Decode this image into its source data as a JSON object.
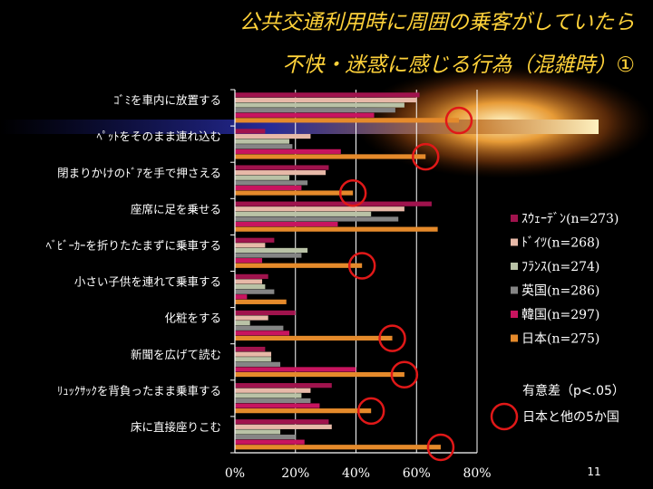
{
  "chart_data": {
    "type": "bar",
    "orientation": "horizontal",
    "title_lines": [
      "公共交通利用時に周囲の乗客がしていたら",
      "不快・迷惑に感じる行為（混雑時）①"
    ],
    "categories": [
      "ｺﾞﾐを車内に放置する",
      "ﾍﾟｯﾄをそのまま連れ込む",
      "閉まりかけのﾄﾞｱを手で押さえる",
      "座席に足を乗せる",
      "ﾍﾞﾋﾞｰｶｰを折りたたまずに乗車する",
      "小さい子供を連れて乗車する",
      "化粧をする",
      "新聞を広げて読む",
      "ﾘｭｯｸｻｯｸを背負ったまま乗車する",
      "床に直接座りこむ"
    ],
    "series": [
      {
        "name": "ｽｳｪｰﾃﾞﾝ(n=273)",
        "color": "#a0134d",
        "values": [
          61,
          10,
          31,
          65,
          13,
          11,
          20,
          10,
          32,
          31
        ]
      },
      {
        "name": "ﾄﾞｲﾂ(n=268)",
        "color": "#e7b9a8",
        "values": [
          60,
          25,
          30,
          56,
          10,
          9,
          11,
          12,
          25,
          32
        ]
      },
      {
        "name": "ﾌﾗﾝｽ(n=274)",
        "color": "#b9c2a6",
        "values": [
          56,
          18,
          18,
          45,
          24,
          10,
          5,
          12,
          22,
          15
        ]
      },
      {
        "name": "英国(n=286)",
        "color": "#858585",
        "values": [
          53,
          19,
          24,
          54,
          22,
          13,
          16,
          15,
          25,
          20
        ]
      },
      {
        "name": "韓国(n=297)",
        "color": "#c8145f",
        "values": [
          46,
          35,
          22,
          34,
          9,
          4,
          18,
          40,
          28,
          23
        ]
      },
      {
        "name": "日本(n=275)",
        "color": "#e58a2b",
        "values": [
          74,
          63,
          39,
          67,
          42,
          17,
          52,
          56,
          45,
          68
        ]
      }
    ],
    "significant_japan": [
      true,
      true,
      true,
      false,
      true,
      false,
      true,
      true,
      true,
      true
    ],
    "xlim": [
      0,
      80
    ],
    "xticks": [
      "0%",
      "20%",
      "40%",
      "60%",
      "80%"
    ],
    "grid": true,
    "legend_position": "right",
    "note_title": "有意差（p<.05）",
    "note_circle_label": "日本と他の5か国",
    "page_number": "11"
  }
}
